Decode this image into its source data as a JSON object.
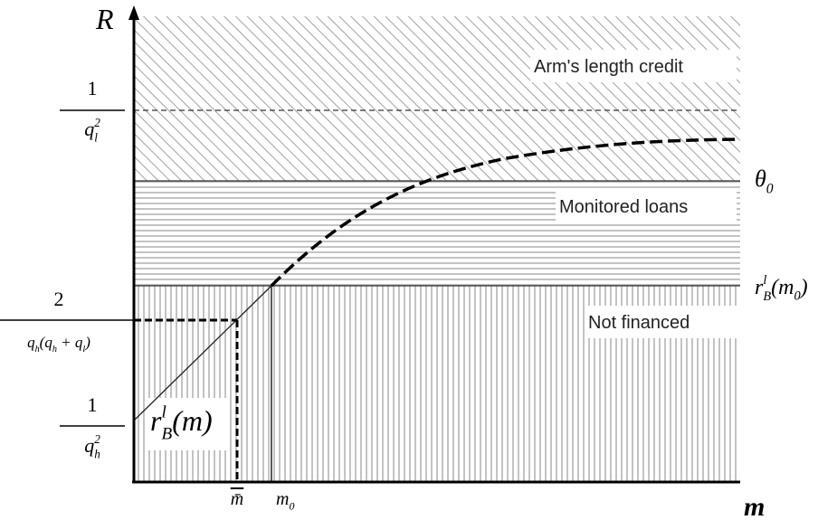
{
  "axes": {
    "y_label": "R",
    "x_label": "m"
  },
  "y_labels": [
    {
      "numerator": "1",
      "denominator": [
        {
          "text": "q",
          "sup": "2",
          "sub": "l"
        }
      ]
    },
    {
      "numerator": "2",
      "denominator": [
        {
          "text": "q",
          "sub": "h"
        },
        {
          "text": "(q",
          "sub": "h"
        },
        {
          "text": " + q",
          "sub": "l"
        },
        {
          "text": ")"
        }
      ]
    },
    {
      "numerator": "1",
      "denominator": [
        {
          "text": "q",
          "sup": "2",
          "sub": "h"
        }
      ]
    }
  ],
  "regions": [
    "Arm's length credit",
    "Monitored loans",
    "Not financed"
  ],
  "curve_labels": {
    "theta": [
      {
        "text": "θ",
        "sub": "0"
      }
    ],
    "r_m0": [
      {
        "text": "r",
        "sup": "l",
        "sub": "B"
      },
      {
        "text": "(m",
        "sub": "0"
      },
      {
        "text": ")"
      }
    ],
    "r_m": [
      {
        "text": "r",
        "sup": "l",
        "sub": "B"
      },
      {
        "text": "(m)"
      }
    ]
  },
  "x_labels": {
    "m_bar": "m̄",
    "m0": [
      {
        "text": "m",
        "sub": "0"
      }
    ]
  }
}
